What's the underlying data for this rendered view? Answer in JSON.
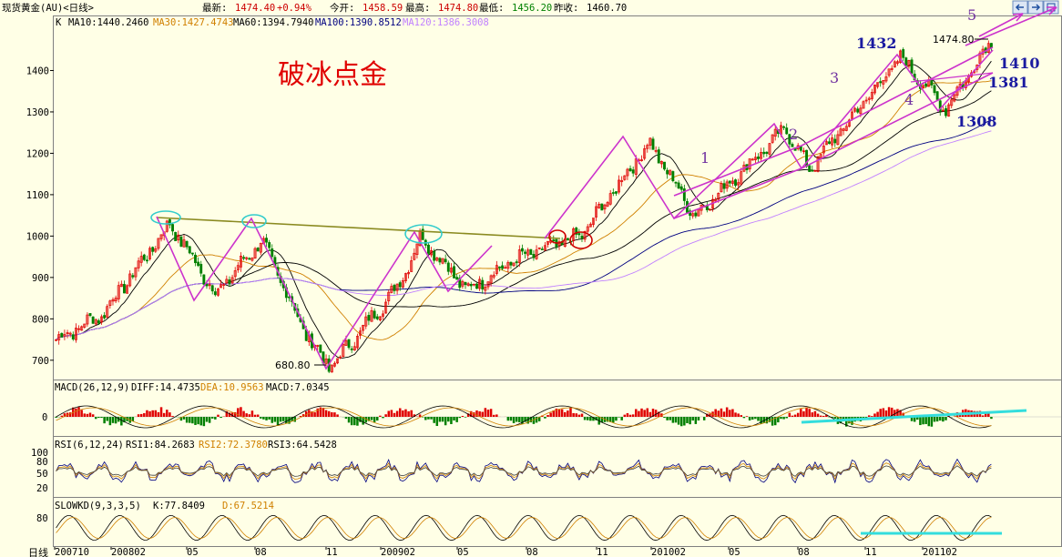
{
  "header": {
    "title": "现货黄金(AU)<日线>",
    "last_label": "最新:",
    "last_value": "1474.40",
    "change": "+0.94%",
    "open_label": "今开:",
    "open_value": "1458.59",
    "high_label": "最高:",
    "high_value": "1474.80",
    "low_label": "最低:",
    "low_value": "1456.20",
    "prev_label": "昨收:",
    "prev_value": "1460.70"
  },
  "ma_legend": {
    "k": "K",
    "ma10": "MA10:1440.2460",
    "ma30": "MA30:1427.4743",
    "ma60": "MA60:1394.7940",
    "ma100": "MA100:1390.8512",
    "ma120": "MA120:1386.3008"
  },
  "annotations": {
    "title": "破冰点金",
    "low_price": "680.80",
    "high_price": "1474.80",
    "w1": "1",
    "w2": "2",
    "w3": "3",
    "w4": "4",
    "w5": "5",
    "p1432": "1432",
    "p1410": "1410",
    "p1381": "1381",
    "p1308": "1308"
  },
  "macd": {
    "label": "MACD(26,12,9)",
    "diff": "DIFF:14.4735",
    "dea": "DEA:10.9563",
    "macd": "MACD:7.0345",
    "zero": "0"
  },
  "rsi": {
    "label": "RSI(6,12,24)",
    "rsi1": "RSI1:84.2683",
    "rsi2": "RSI2:72.3780",
    "rsi3": "RSI3:64.5428",
    "ticks": [
      "100",
      "80",
      "50",
      "20"
    ]
  },
  "kd": {
    "label": "SLOWKD(9,3,3,5)",
    "k": "K:77.8409",
    "d": "D:67.5214",
    "tick": "80"
  },
  "xaxis": {
    "unit": "日线",
    "labels": [
      "200710",
      "200802",
      "05",
      "08",
      "11",
      "200902",
      "05",
      "08",
      "11",
      "201002",
      "05",
      "08",
      "11",
      "201102"
    ]
  },
  "colors": {
    "bg": "#ffffe6",
    "up": "#e00000",
    "down": "#008000",
    "ma10": "#000000",
    "ma30": "#d08000",
    "ma60": "#000000",
    "ma100": "#000080",
    "ma120": "#c080ff",
    "wave": "#cc33cc",
    "trend": "#8a8a20",
    "circle": "#33cccc",
    "circle_red": "#cc0000"
  },
  "chart_data": {
    "type": "candlestick",
    "title": "现货黄金(AU)<日线>",
    "y_ticks": [
      700,
      800,
      900,
      1000,
      1100,
      1200,
      1300,
      1400
    ],
    "ylim": [
      660,
      1500
    ],
    "x_ticks": [
      "200710",
      "200802",
      "05",
      "08",
      "11",
      "200902",
      "05",
      "08",
      "11",
      "201002",
      "05",
      "08",
      "11",
      "201102"
    ],
    "price_path": [
      {
        "month": "2007-10",
        "close": 750
      },
      {
        "month": "2007-12",
        "close": 810
      },
      {
        "month": "2008-03",
        "close": 1030
      },
      {
        "month": "2008-05",
        "close": 860
      },
      {
        "month": "2008-07",
        "close": 990
      },
      {
        "month": "2008-09",
        "close": 760
      },
      {
        "month": "2008-10",
        "close": 680.8
      },
      {
        "month": "2009-01",
        "close": 880
      },
      {
        "month": "2009-02",
        "close": 1000
      },
      {
        "month": "2009-04",
        "close": 870
      },
      {
        "month": "2009-06",
        "close": 940
      },
      {
        "month": "2009-09",
        "close": 1000
      },
      {
        "month": "2009-12",
        "close": 1226
      },
      {
        "month": "2010-02",
        "close": 1050
      },
      {
        "month": "2010-06",
        "close": 1260
      },
      {
        "month": "2010-07",
        "close": 1160
      },
      {
        "month": "2010-11",
        "close": 1432
      },
      {
        "month": "2011-01",
        "close": 1308
      },
      {
        "month": "2011-03",
        "close": 1474.8
      }
    ]
  }
}
